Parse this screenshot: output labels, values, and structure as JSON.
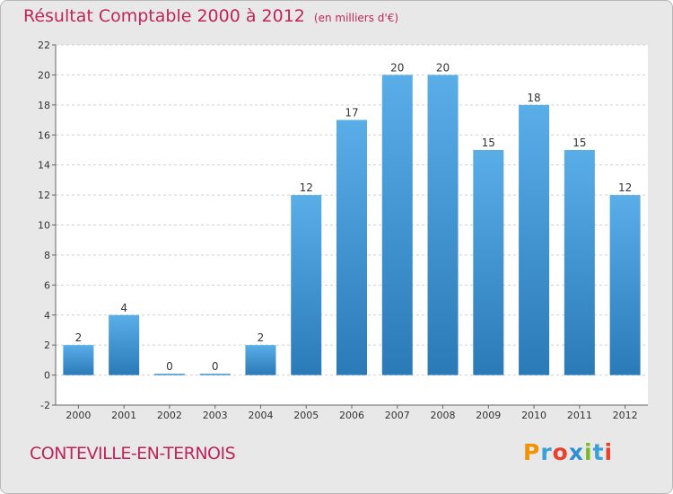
{
  "header": {
    "title": "Résultat Comptable 2000 à 2012",
    "unit": "(en milliers d'€)"
  },
  "footer": {
    "commune": "CONTEVILLE-EN-TERNOIS",
    "logo": "Proxiti",
    "logo_colors": [
      "#f39200",
      "#3aa0d8",
      "#e8412c",
      "#2f8fd0",
      "#7cb928",
      "#3aa0d8",
      "#e8412c"
    ]
  },
  "colors": {
    "title": "#c0255a",
    "bar_top": "#5aaee8",
    "bar_bottom": "#2a7ab8",
    "background": "#e8e8e8",
    "plot_background": "#ffffff"
  },
  "chart_data": {
    "type": "bar",
    "categories": [
      "2000",
      "2001",
      "2002",
      "2003",
      "2004",
      "2005",
      "2006",
      "2007",
      "2008",
      "2009",
      "2010",
      "2011",
      "2012"
    ],
    "values": [
      2,
      4,
      0,
      0,
      2,
      12,
      17,
      20,
      20,
      15,
      18,
      15,
      12
    ],
    "ylim": [
      -2,
      22
    ],
    "yticks": [
      -2,
      0,
      2,
      4,
      6,
      8,
      10,
      12,
      14,
      16,
      18,
      20,
      22
    ],
    "grid": "horizontal dashed"
  }
}
